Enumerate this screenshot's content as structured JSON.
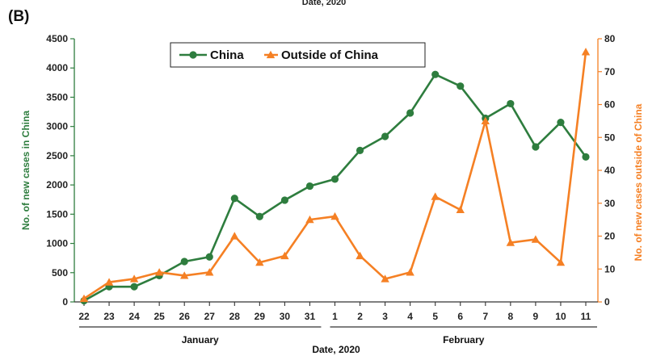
{
  "panel_label": "(B)",
  "top_caption": "Date, 2020",
  "colors": {
    "china": "#2e7d3e",
    "outside": "#f58024",
    "axis": "#333333"
  },
  "chart_data": {
    "type": "line",
    "x": [
      "22",
      "23",
      "24",
      "25",
      "26",
      "27",
      "28",
      "29",
      "30",
      "31",
      "1",
      "2",
      "3",
      "4",
      "5",
      "6",
      "7",
      "8",
      "9",
      "10",
      "11"
    ],
    "months": [
      {
        "label": "January",
        "from": 0,
        "to": 9
      },
      {
        "label": "February",
        "from": 10,
        "to": 20
      }
    ],
    "xlabel": "Date, 2020",
    "legend_position": "top-center",
    "y_left": {
      "label": "No. of new cases in China",
      "lim": [
        0,
        4500
      ],
      "ticks": [
        0,
        500,
        1000,
        1500,
        2000,
        2500,
        3000,
        3500,
        4000,
        4500
      ]
    },
    "y_right": {
      "label": "No. of new cases outside of China",
      "lim": [
        0,
        80
      ],
      "ticks": [
        0,
        10,
        20,
        30,
        40,
        50,
        60,
        70,
        80
      ]
    },
    "series": [
      {
        "name": "China",
        "axis": "left",
        "marker": "circle",
        "values": [
          20,
          260,
          260,
          450,
          690,
          770,
          1770,
          1460,
          1740,
          1980,
          2100,
          2590,
          2830,
          3230,
          3890,
          3690,
          3140,
          3390,
          2650,
          3070,
          2480
        ]
      },
      {
        "name": "Outside of China",
        "axis": "right",
        "marker": "triangle",
        "values": [
          1,
          6,
          7,
          9,
          8,
          9,
          20,
          12,
          14,
          25,
          26,
          14,
          7,
          9,
          32,
          28,
          55,
          18,
          19,
          12,
          76
        ]
      }
    ]
  }
}
